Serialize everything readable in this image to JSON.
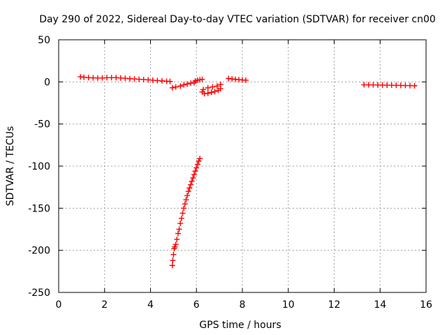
{
  "chart_data": {
    "type": "scatter",
    "title": "Day 290 of 2022, Sidereal Day-to-day VTEC variation (SDTVAR) for receiver cn00",
    "xlabel": "GPS time / hours",
    "ylabel": "SDTVAR / TECUs",
    "xlim": [
      0,
      16
    ],
    "ylim": [
      -250,
      50
    ],
    "xticks": [
      0,
      2,
      4,
      6,
      8,
      10,
      12,
      14,
      16
    ],
    "yticks": [
      50,
      0,
      -50,
      -100,
      -150,
      -200,
      -250
    ],
    "grid": true,
    "marker": "plus",
    "marker_color": "#ff0000",
    "series": [
      {
        "points": [
          [
            0.95,
            6
          ],
          [
            1.1,
            5.5
          ],
          [
            1.3,
            5
          ],
          [
            1.5,
            4.8
          ],
          [
            1.7,
            4.6
          ],
          [
            1.9,
            4.7
          ],
          [
            2.1,
            5
          ],
          [
            2.3,
            5
          ],
          [
            2.5,
            5
          ],
          [
            2.7,
            4.6
          ],
          [
            2.9,
            4.3
          ],
          [
            3.1,
            3.8
          ],
          [
            3.3,
            3.5
          ],
          [
            3.5,
            3.1
          ],
          [
            3.7,
            2.8
          ],
          [
            3.9,
            2.4
          ],
          [
            4.1,
            2
          ],
          [
            4.3,
            1.6
          ],
          [
            4.5,
            1.2
          ],
          [
            4.7,
            0.8
          ],
          [
            4.85,
            0.5
          ],
          [
            4.95,
            -7
          ],
          [
            5.1,
            -6
          ],
          [
            5.3,
            -5
          ],
          [
            5.45,
            -3.5
          ],
          [
            5.6,
            -2.5
          ],
          [
            5.75,
            -1.5
          ],
          [
            5.9,
            -1
          ],
          [
            5.95,
            1
          ],
          [
            6.05,
            2
          ],
          [
            6.15,
            2.5
          ],
          [
            6.25,
            3
          ],
          [
            6.25,
            -12
          ],
          [
            6.35,
            -14
          ],
          [
            6.5,
            -13.5
          ],
          [
            6.65,
            -12.5
          ],
          [
            6.8,
            -11.5
          ],
          [
            6.95,
            -10
          ],
          [
            7.05,
            -8
          ],
          [
            6.3,
            -9
          ],
          [
            6.5,
            -7
          ],
          [
            6.7,
            -6
          ],
          [
            6.9,
            -5
          ],
          [
            7.05,
            -3
          ],
          [
            7.4,
            4
          ],
          [
            7.55,
            3.5
          ],
          [
            7.7,
            3
          ],
          [
            7.85,
            2.6
          ],
          [
            8.0,
            2.3
          ],
          [
            8.15,
            2
          ],
          [
            13.3,
            -3.5
          ],
          [
            13.5,
            -3.5
          ],
          [
            13.7,
            -3.6
          ],
          [
            13.9,
            -3.7
          ],
          [
            14.1,
            -3.8
          ],
          [
            14.3,
            -3.9
          ],
          [
            14.5,
            -4
          ],
          [
            14.7,
            -4.1
          ],
          [
            14.9,
            -4.2
          ],
          [
            15.1,
            -4.3
          ],
          [
            15.3,
            -4.4
          ],
          [
            15.5,
            -4.6
          ],
          [
            4.95,
            -218
          ],
          [
            4.97,
            -212
          ],
          [
            5.0,
            -205
          ],
          [
            5.03,
            -198
          ],
          [
            5.06,
            -196
          ],
          [
            5.1,
            -193
          ],
          [
            5.15,
            -187
          ],
          [
            5.2,
            -180
          ],
          [
            5.25,
            -175
          ],
          [
            5.3,
            -168
          ],
          [
            5.35,
            -162
          ],
          [
            5.4,
            -156
          ],
          [
            5.45,
            -150
          ],
          [
            5.5,
            -145
          ],
          [
            5.55,
            -140
          ],
          [
            5.6,
            -135
          ],
          [
            5.65,
            -130
          ],
          [
            5.7,
            -126
          ],
          [
            5.75,
            -122
          ],
          [
            5.8,
            -118
          ],
          [
            5.85,
            -114
          ],
          [
            5.9,
            -110
          ],
          [
            5.95,
            -106
          ],
          [
            6.0,
            -102
          ],
          [
            6.05,
            -98
          ],
          [
            6.1,
            -94
          ],
          [
            6.15,
            -91
          ]
        ]
      }
    ]
  }
}
